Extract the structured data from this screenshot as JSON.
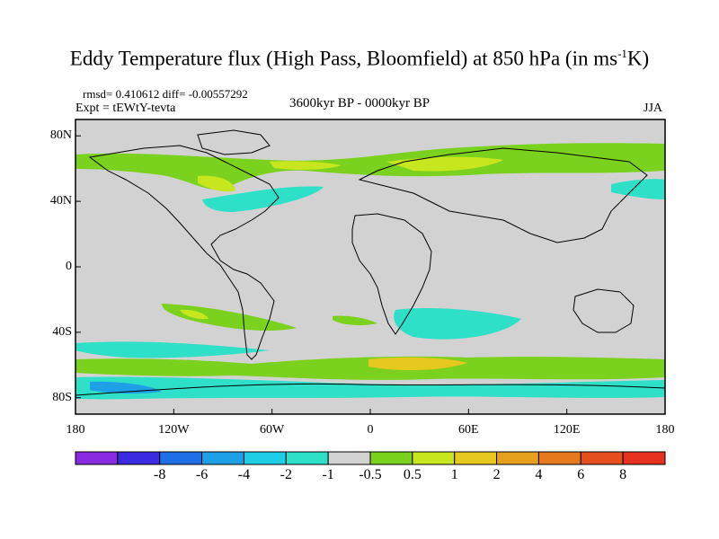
{
  "title_main": "Eddy Temperature flux (High Pass, Bloomfield) at 850 hPa (in ms",
  "title_sup": "-1",
  "title_end": "K)",
  "stats": "rmsd= 0.410612 diff= -0.00557292",
  "expt": "Expt = tEWtY-tevta",
  "period": "3600kyr BP - 0000kyr BP",
  "season": "JJA",
  "lat_ticks": [
    {
      "label": "80N",
      "value": 80
    },
    {
      "label": "40N",
      "value": 40
    },
    {
      "label": "0",
      "value": 0
    },
    {
      "label": "40S",
      "value": -40
    },
    {
      "label": "80S",
      "value": -80
    }
  ],
  "lon_ticks": [
    {
      "label": "180",
      "value": -180
    },
    {
      "label": "120W",
      "value": -120
    },
    {
      "label": "60W",
      "value": -60
    },
    {
      "label": "0",
      "value": 0
    },
    {
      "label": "60E",
      "value": 60
    },
    {
      "label": "120E",
      "value": 120
    },
    {
      "label": "180",
      "value": 180
    }
  ],
  "colorbar": {
    "colors": [
      "#8a2be2",
      "#3a2ae0",
      "#1e6ee6",
      "#1ea0e6",
      "#1ecde6",
      "#2ee0c8",
      "#d2d2d2",
      "#7ad21e",
      "#c8e61e",
      "#e6c81e",
      "#e6a01e",
      "#e6781e",
      "#e6501e",
      "#e6321e"
    ],
    "labels": [
      "-8",
      "-6",
      "-4",
      "-2",
      "-1",
      "-0.5",
      "0.5",
      "1",
      "2",
      "4",
      "6",
      "8"
    ]
  },
  "colors": {
    "background_zero": "#d2d2d2",
    "coast": "#000000"
  }
}
